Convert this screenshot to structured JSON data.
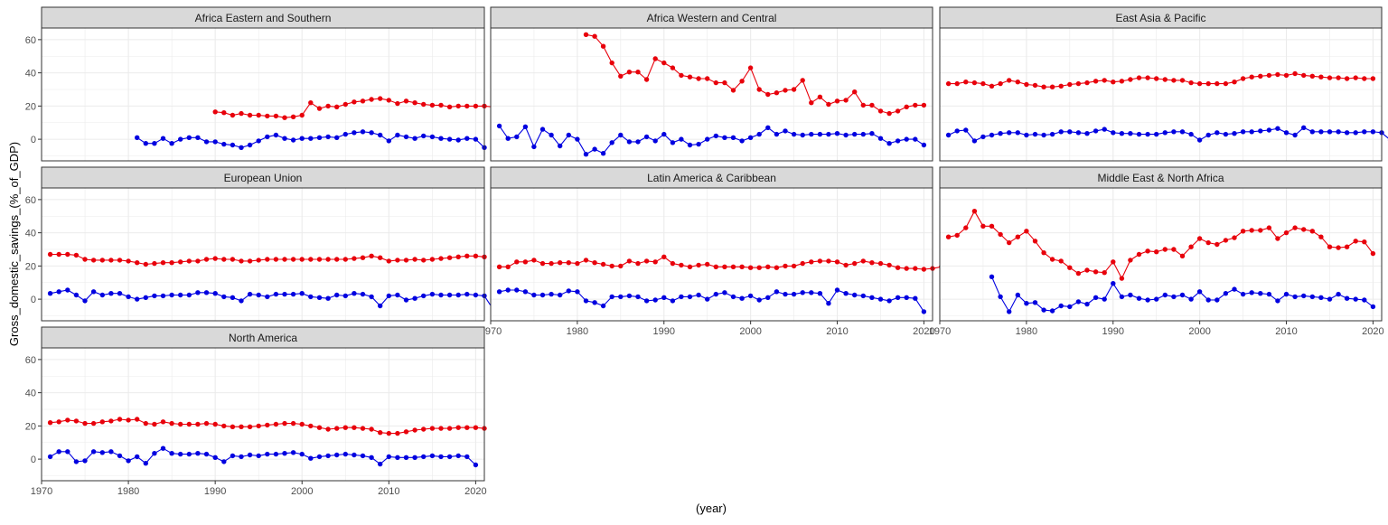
{
  "chart_data": {
    "type": "line",
    "layout": "facet-grid",
    "xlabel": "(year)",
    "ylabel": "Gross_domestic_savings_(%_of_GDP)",
    "xlim": [
      1970,
      2021
    ],
    "ylim": [
      -13,
      67
    ],
    "x_ticks": [
      1970,
      1980,
      1990,
      2000,
      2010,
      2020
    ],
    "y_ticks": [
      0,
      20,
      40,
      60
    ],
    "grid": true,
    "colors": {
      "series_a": "#E8000B",
      "series_b": "#0000E0",
      "strip": "#D9D9D9",
      "grid": "#EBEBEB"
    },
    "series_colors": [
      "#E8000B",
      "#0000E0"
    ],
    "panels": [
      {
        "title": "Africa Eastern and Southern",
        "series": [
          {
            "x_start": 1990,
            "values": [
              16.5,
              16,
              14.5,
              15.5,
              14.5,
              14.5,
              14,
              14,
              13,
              13.5,
              14.5,
              22,
              18.5,
              20,
              19.5,
              21,
              22.5,
              23,
              24,
              24.5,
              23.5,
              21.5,
              23,
              22,
              21,
              20.5,
              20.5,
              19.5,
              20,
              20,
              20,
              20,
              19.5
            ]
          },
          {
            "x_start": 1981,
            "values": [
              1,
              -2.5,
              -2.5,
              0.5,
              -2.5,
              0,
              1,
              1,
              -1.5,
              -1.5,
              -3,
              -3.5,
              -5,
              -3.5,
              -1,
              1.5,
              2.5,
              0.5,
              -0.5,
              0.5,
              0.5,
              1,
              1.5,
              1,
              3,
              4,
              4.5,
              4,
              2.5,
              -1,
              2.5,
              1.5,
              0.5,
              2,
              1.5,
              0.5,
              0,
              -0.5,
              0.5,
              0,
              -5
            ]
          }
        ]
      },
      {
        "title": "Africa Western and Central",
        "series": [
          {
            "x_start": 1981,
            "values": [
              63,
              62,
              56,
              46,
              38,
              40.5,
              40.5,
              36,
              48.5,
              46,
              43,
              38.5,
              37.5,
              36.5,
              36.5,
              34,
              34,
              29.5,
              35,
              43,
              30,
              27,
              28,
              29.5,
              30,
              35.5,
              22,
              25.5,
              21,
              23,
              23.5,
              28.5,
              20.5,
              20.5,
              17,
              15.5,
              17,
              19.5,
              20.5,
              20.5
            ]
          },
          {
            "x_start": 1971,
            "values": [
              8,
              0.5,
              1.5,
              7.5,
              -4.5,
              6,
              2.5,
              -4,
              2.5,
              0,
              -9,
              -6,
              -8.5,
              -2,
              2.5,
              -1.5,
              -1.5,
              1.5,
              -1,
              3,
              -2,
              0,
              -3.5,
              -3,
              0,
              2,
              1,
              1,
              -1,
              1,
              3,
              7,
              3,
              5,
              3,
              2.5,
              3,
              3,
              3,
              3.5,
              2.5,
              3,
              3,
              3.5,
              0.5,
              -2.5,
              -1,
              0,
              0,
              -3.5
            ]
          }
        ]
      },
      {
        "title": "East Asia & Pacific",
        "series": [
          {
            "x_start": 1971,
            "values": [
              33.5,
              33.5,
              34.5,
              34,
              33.5,
              32,
              33.5,
              35.5,
              34.5,
              33,
              32.5,
              31.5,
              31.5,
              32,
              33,
              33.5,
              34,
              35,
              35.5,
              34.5,
              35,
              36,
              37,
              37,
              36.5,
              36,
              35.5,
              35.5,
              34,
              33.5,
              33.5,
              33.5,
              33.5,
              34.5,
              36.5,
              37.5,
              38,
              38.5,
              39,
              38.5,
              39.5,
              38.5,
              38,
              37.5,
              37,
              37,
              36.5,
              37,
              36.5,
              36.5
            ]
          },
          {
            "x_start": 1971,
            "values": [
              2.5,
              5,
              5.5,
              -1,
              1.5,
              2.5,
              3.5,
              4,
              4,
              2.5,
              3,
              2.5,
              3,
              4.5,
              4.5,
              4,
              3.5,
              5,
              6,
              4,
              3.5,
              3.5,
              3,
              3,
              3,
              4,
              4.5,
              4.5,
              3,
              -0.5,
              2.5,
              4,
              3,
              3.5,
              4.5,
              4.5,
              5,
              5.5,
              6.5,
              4,
              2.5,
              7,
              4.5,
              4.5,
              4.5,
              4.5,
              4,
              4,
              4.5,
              4.5,
              4,
              -0.5
            ]
          }
        ]
      },
      {
        "title": "European Union",
        "series": [
          {
            "x_start": 1971,
            "values": [
              27,
              27,
              27,
              26.5,
              24,
              23.5,
              23.5,
              23.5,
              23.5,
              23,
              22,
              21,
              21.5,
              22,
              22,
              22.5,
              23,
              23,
              24,
              24.5,
              24,
              24,
              23,
              23,
              23.5,
              24,
              24,
              24,
              24,
              24,
              24,
              24,
              24,
              24,
              24,
              24.5,
              25,
              26,
              25,
              23,
              23.5,
              23.5,
              24,
              23.5,
              24,
              24.5,
              25,
              25.5,
              26,
              26,
              25.5
            ]
          },
          {
            "x_start": 1971,
            "values": [
              3.5,
              4.5,
              5.5,
              2.5,
              -1,
              4.5,
              2.5,
              3.5,
              3.5,
              1.5,
              0,
              1,
              2,
              2,
              2.5,
              2.5,
              2.5,
              4,
              4,
              3.5,
              1.5,
              1,
              -1,
              3,
              2.5,
              1.5,
              3,
              3,
              3,
              3.5,
              1.5,
              1,
              0.5,
              2.5,
              2,
              3.5,
              3,
              1.5,
              -4,
              2,
              2.5,
              -0.5,
              0.5,
              2,
              3,
              2.5,
              2.5,
              2.5,
              3,
              2.5,
              2,
              -6
            ]
          }
        ]
      },
      {
        "title": "Latin America & Caribbean",
        "series": [
          {
            "x_start": 1971,
            "values": [
              19.5,
              19.5,
              22.5,
              22.5,
              23.5,
              21.5,
              21.5,
              22,
              22,
              21.5,
              23.5,
              22,
              21,
              20,
              20,
              23,
              21.5,
              23,
              22.5,
              25.5,
              21.5,
              20.5,
              19.5,
              20.5,
              21,
              19.5,
              19.5,
              19.5,
              19.5,
              19,
              19,
              19.5,
              19,
              20,
              20,
              21.5,
              22.5,
              23,
              23,
              22.5,
              20.5,
              21.5,
              23,
              22,
              21.5,
              20.5,
              19,
              18.5,
              18.5,
              18,
              18.5,
              19.5
            ]
          },
          {
            "x_start": 1971,
            "values": [
              4.5,
              5.5,
              5.5,
              4.5,
              2.5,
              2.5,
              3,
              2.5,
              5,
              4.5,
              -1,
              -2,
              -4,
              1.5,
              1.5,
              2,
              1.5,
              -1,
              -0.5,
              1,
              -1,
              1.5,
              1.5,
              2.5,
              0,
              3,
              4,
              1.5,
              0.5,
              2,
              -0.5,
              1,
              4.5,
              3,
              3,
              4,
              4,
              3.5,
              -2.5,
              5.5,
              3.5,
              2.5,
              2,
              1,
              0,
              -1,
              1,
              1,
              0.5,
              -7.5
            ]
          }
        ]
      },
      {
        "title": "Middle East & North Africa",
        "series": [
          {
            "x_start": 1971,
            "values": [
              37.5,
              38.5,
              43,
              53,
              44,
              44,
              39,
              34,
              37.5,
              41,
              35,
              28,
              24,
              23,
              19,
              15.5,
              17.5,
              16.5,
              16,
              22.5,
              12.5,
              23.5,
              27,
              29,
              28.5,
              30,
              30,
              26,
              31.5,
              36.5,
              34,
              33,
              35.5,
              37,
              41,
              41.5,
              41.5,
              43,
              36.5,
              40,
              43,
              42,
              41,
              37.5,
              31.5,
              31,
              31.5,
              35,
              34.5,
              27.5
            ]
          },
          {
            "x_start": 1976,
            "values": [
              13.5,
              1.5,
              -7.5,
              2.5,
              -2.5,
              -2,
              -6.5,
              -7,
              -4,
              -4.5,
              -1.5,
              -3,
              1,
              0,
              9.5,
              1.5,
              2.5,
              0.5,
              -0.5,
              0,
              2.5,
              1.5,
              2.5,
              0,
              4.5,
              -0.5,
              -0.5,
              3.5,
              6,
              3,
              4,
              3.5,
              3,
              -1,
              3,
              1.5,
              2,
              1.5,
              1,
              0,
              3,
              0.5,
              0,
              -0.5,
              -4.5
            ]
          }
        ]
      },
      {
        "title": "North America",
        "series": [
          {
            "x_start": 1971,
            "values": [
              22,
              22.5,
              23.5,
              23,
              21.5,
              21.5,
              22.5,
              23,
              24,
              23.5,
              24,
              21.5,
              21,
              22.5,
              21.5,
              21,
              21,
              21,
              21.5,
              21,
              20,
              19.5,
              19.5,
              19.5,
              20,
              20.5,
              21,
              21.5,
              21.5,
              21,
              20,
              19,
              18,
              18.5,
              19,
              19,
              18.5,
              18,
              16,
              15.5,
              15.5,
              16.5,
              17.5,
              18,
              18.5,
              18.5,
              18.5,
              19,
              19,
              19,
              18.5
            ]
          },
          {
            "x_start": 1971,
            "values": [
              1.5,
              4.5,
              4.5,
              -1.5,
              -1,
              4.5,
              4,
              4.5,
              2,
              -1,
              1.5,
              -2.5,
              3.5,
              6.5,
              3.5,
              3,
              3,
              3.5,
              3,
              1,
              -1.5,
              2,
              1.5,
              2.5,
              2,
              3,
              3,
              3.5,
              4,
              3,
              0.5,
              1.5,
              2,
              2.5,
              3,
              2.5,
              2,
              1,
              -3,
              1.5,
              1,
              1,
              1,
              1.5,
              2,
              1.5,
              1.5,
              2,
              1.5,
              -3.5
            ]
          }
        ]
      }
    ]
  }
}
